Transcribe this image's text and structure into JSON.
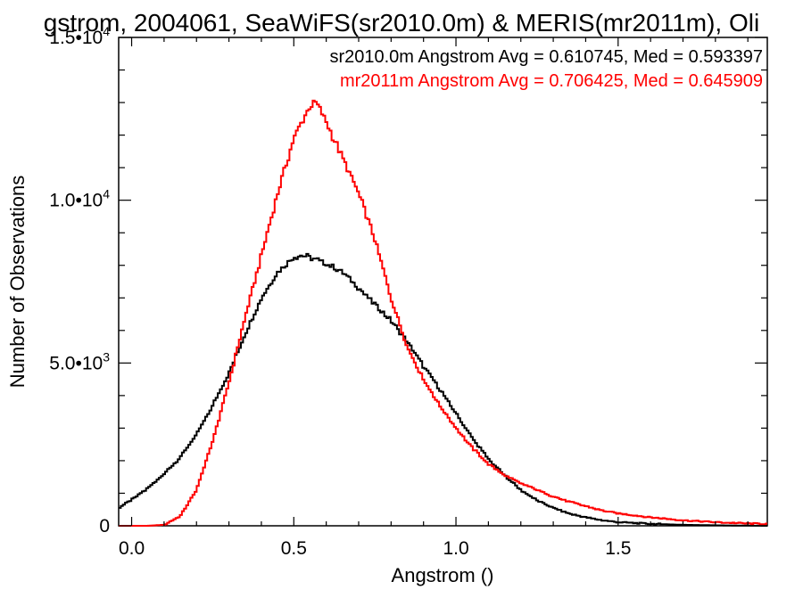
{
  "chart_data": {
    "type": "line",
    "title": "gstrom, 2004061, SeaWiFS(sr2010.0m) & MERIS(mr2011m), Oli",
    "xlabel": "Angstrom ()",
    "ylabel": "Number of Observations",
    "xlim": [
      -0.04,
      1.96
    ],
    "ylim": [
      0,
      15000
    ],
    "x_ticks": [
      {
        "value": 0.0,
        "label": "0.0"
      },
      {
        "value": 0.5,
        "label": "0.5"
      },
      {
        "value": 1.0,
        "label": "1.0"
      },
      {
        "value": 1.5,
        "label": "1.5"
      }
    ],
    "y_ticks": [
      {
        "value": 0,
        "label": "0",
        "exp": ""
      },
      {
        "value": 5000,
        "label": "5.0•10",
        "exp": "3"
      },
      {
        "value": 10000,
        "label": "1.0•10",
        "exp": "4"
      },
      {
        "value": 15000,
        "label": "1.5•10",
        "exp": "4"
      }
    ],
    "grid": false,
    "legend_position": "top-right",
    "series": [
      {
        "name": "sr2010.0m Angstrom Avg = 0.610745, Med = 0.593397",
        "color": "#000000",
        "x": [
          -0.04,
          0.0,
          0.05,
          0.1,
          0.15,
          0.2,
          0.25,
          0.3,
          0.35,
          0.4,
          0.45,
          0.5,
          0.52,
          0.55,
          0.6,
          0.65,
          0.7,
          0.75,
          0.8,
          0.85,
          0.9,
          0.95,
          1.0,
          1.05,
          1.1,
          1.15,
          1.2,
          1.25,
          1.3,
          1.35,
          1.4,
          1.45,
          1.5,
          1.6,
          1.7,
          1.8,
          1.9,
          1.96
        ],
        "values": [
          550,
          800,
          1150,
          1600,
          2100,
          2800,
          3700,
          4700,
          5900,
          7000,
          7800,
          8250,
          8300,
          8250,
          8050,
          7800,
          7300,
          6800,
          6300,
          5650,
          4900,
          4200,
          3450,
          2700,
          2050,
          1550,
          1100,
          780,
          550,
          370,
          260,
          170,
          110,
          60,
          30,
          15,
          5,
          0
        ]
      },
      {
        "name": "mr2011m Angstrom Avg = 0.706425, Med = 0.645909",
        "color": "#ff0000",
        "x": [
          -0.04,
          0.0,
          0.05,
          0.1,
          0.15,
          0.2,
          0.25,
          0.3,
          0.35,
          0.4,
          0.45,
          0.5,
          0.55,
          0.57,
          0.6,
          0.65,
          0.7,
          0.75,
          0.8,
          0.85,
          0.9,
          0.95,
          1.0,
          1.05,
          1.1,
          1.15,
          1.2,
          1.25,
          1.3,
          1.35,
          1.4,
          1.45,
          1.5,
          1.6,
          1.7,
          1.8,
          1.9,
          1.96
        ],
        "values": [
          0,
          0,
          0,
          30,
          300,
          1100,
          2600,
          4400,
          6400,
          8300,
          10200,
          11900,
          12900,
          13000,
          12400,
          11300,
          10200,
          8800,
          7000,
          5500,
          4500,
          3700,
          3000,
          2400,
          1900,
          1550,
          1300,
          1100,
          900,
          740,
          600,
          470,
          380,
          260,
          170,
          110,
          70,
          60
        ]
      }
    ]
  }
}
